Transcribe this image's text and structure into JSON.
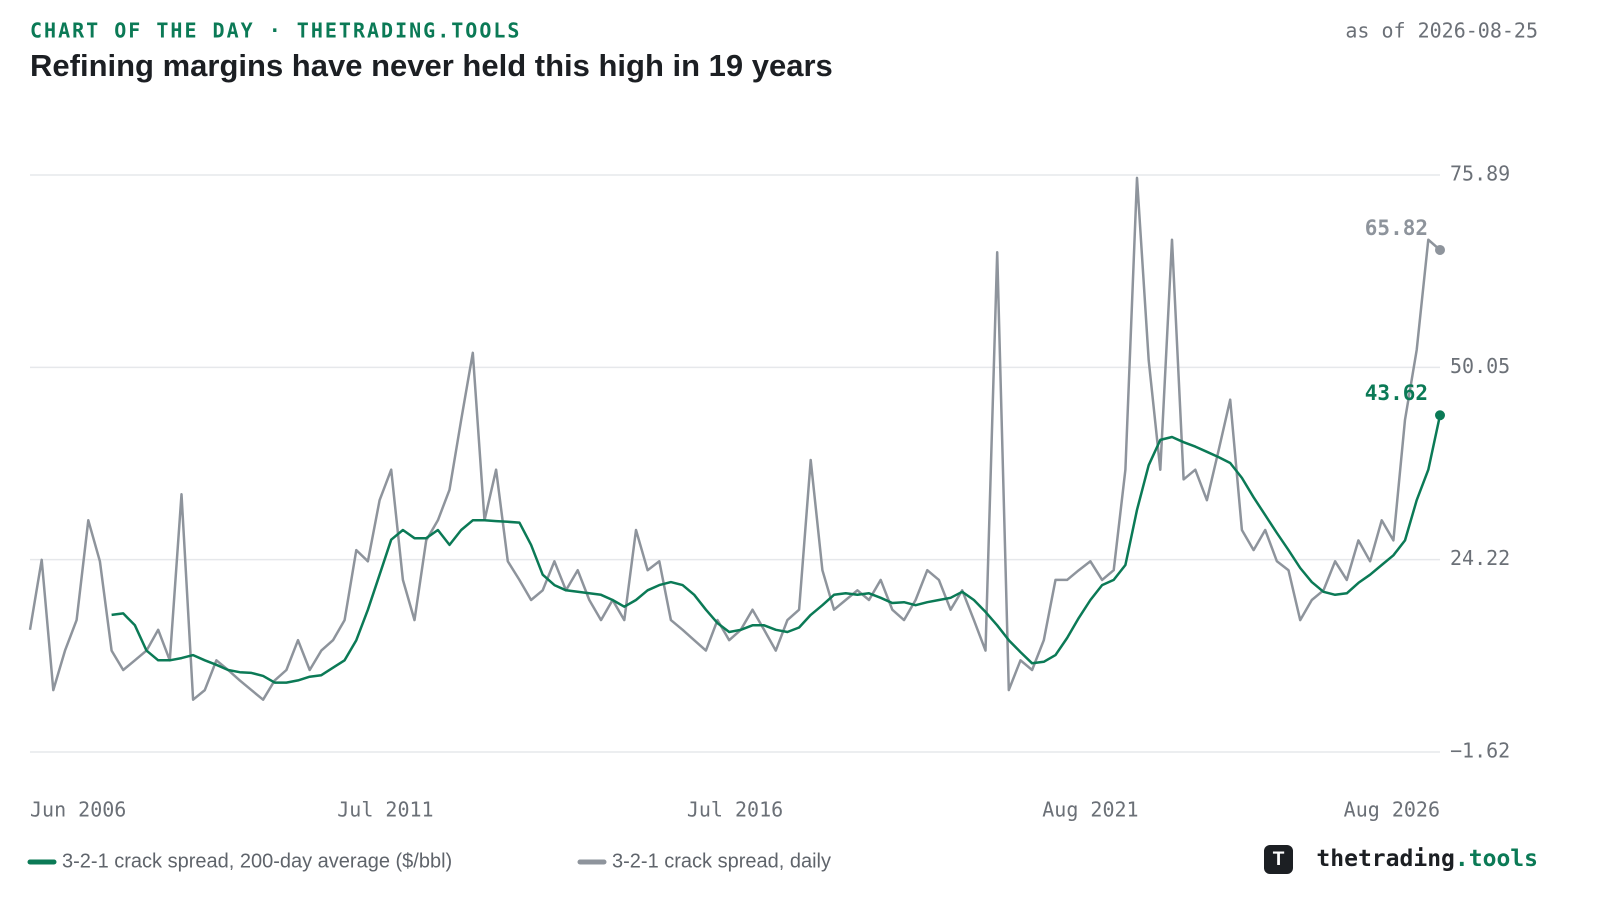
{
  "header": {
    "kicker": "CHART OF THE DAY · THETRADING.TOOLS",
    "title": "Refining margins have never held this high in 19 years",
    "as_of": "as of 2026-08-25"
  },
  "footer": {
    "logo_letter": "T",
    "brand": [
      "thetrading",
      ".tools"
    ]
  },
  "chart_data": {
    "type": "line",
    "x": [
      "2006-06",
      "2006-08",
      "2006-10",
      "2006-12",
      "2007-02",
      "2007-04",
      "2007-06",
      "2007-08",
      "2007-10",
      "2007-12",
      "2008-02",
      "2008-04",
      "2008-06",
      "2008-08",
      "2008-10",
      "2008-12",
      "2009-02",
      "2009-04",
      "2009-06",
      "2009-08",
      "2009-10",
      "2009-12",
      "2010-02",
      "2010-04",
      "2010-06",
      "2010-08",
      "2010-10",
      "2010-12",
      "2011-02",
      "2011-04",
      "2011-06",
      "2011-08",
      "2011-10",
      "2011-12",
      "2012-02",
      "2012-04",
      "2012-06",
      "2012-08",
      "2012-10",
      "2012-12",
      "2013-02",
      "2013-04",
      "2013-06",
      "2013-08",
      "2013-10",
      "2013-12",
      "2014-02",
      "2014-04",
      "2014-06",
      "2014-08",
      "2014-10",
      "2014-12",
      "2015-02",
      "2015-04",
      "2015-06",
      "2015-08",
      "2015-10",
      "2015-12",
      "2016-02",
      "2016-04",
      "2016-06",
      "2016-08",
      "2016-10",
      "2016-12",
      "2017-02",
      "2017-04",
      "2017-06",
      "2017-08",
      "2017-10",
      "2017-12",
      "2018-02",
      "2018-04",
      "2018-06",
      "2018-08",
      "2018-10",
      "2018-12",
      "2019-02",
      "2019-04",
      "2019-06",
      "2019-08",
      "2019-10",
      "2019-12",
      "2020-02",
      "2020-04",
      "2020-06",
      "2020-08",
      "2020-10",
      "2020-12",
      "2021-02",
      "2021-04",
      "2021-06",
      "2021-08",
      "2021-10",
      "2021-12",
      "2022-02",
      "2022-04",
      "2022-06",
      "2022-08",
      "2022-10",
      "2022-12",
      "2023-02",
      "2023-04",
      "2023-06",
      "2023-08",
      "2023-10",
      "2023-12",
      "2024-02",
      "2024-04",
      "2024-06",
      "2024-08",
      "2024-10",
      "2024-12",
      "2025-02",
      "2025-04",
      "2025-06",
      "2025-08",
      "2025-10",
      "2025-12",
      "2026-02",
      "2026-04",
      "2026-06",
      "2026-08"
    ],
    "series": [
      {
        "name": "3-2-1 crack spread, 200-day average ($/bbl)",
        "color": "#0b7a56",
        "values": [
          null,
          null,
          null,
          null,
          null,
          null,
          null,
          16.8,
          17,
          15.4,
          12,
          10.7,
          10.7,
          11,
          11.4,
          10.7,
          10.1,
          9.4,
          9.1,
          9,
          8.6,
          7.7,
          7.7,
          8,
          8.5,
          8.7,
          9.7,
          10.7,
          13.4,
          17.5,
          22.2,
          26.9,
          28.2,
          27.1,
          27.1,
          28.2,
          26.2,
          28.2,
          29.5,
          29.5,
          29.4,
          29.3,
          29.2,
          26.2,
          22.2,
          20.8,
          20.1,
          19.9,
          19.7,
          19.5,
          18.8,
          17.9,
          18.8,
          20.1,
          20.8,
          21.2,
          20.8,
          19.5,
          17.5,
          15.7,
          14.5,
          14.8,
          15.4,
          15.4,
          14.8,
          14.5,
          15.1,
          16.8,
          18.1,
          19.5,
          19.7,
          19.5,
          19.7,
          19.1,
          18.4,
          18.5,
          18.1,
          18.5,
          18.8,
          19.1,
          19.9,
          18.8,
          17.2,
          15.4,
          13.4,
          11.8,
          10.3,
          10.5,
          11.4,
          13.7,
          16.4,
          18.8,
          20.8,
          21.5,
          23.5,
          30.9,
          36.9,
          40.3,
          40.7,
          40,
          39.4,
          38.7,
          38,
          37.2,
          35.2,
          32.6,
          30.2,
          27.8,
          25.5,
          23.1,
          21.2,
          19.9,
          19.5,
          19.7,
          21.1,
          22.2,
          23.5,
          24.8,
          26.8,
          32.2,
          36.3,
          43.62
        ]
      },
      {
        "name": "3-2-1 crack spread, daily",
        "color": "#8e949c",
        "values": [
          14.8,
          24.2,
          6.7,
          12,
          16.1,
          29.5,
          24,
          12,
          9.4,
          10.7,
          12,
          14.8,
          10.7,
          33,
          5.4,
          6.7,
          10.7,
          9.4,
          8,
          6.7,
          5.4,
          8,
          9.4,
          13.4,
          9.4,
          12,
          13.4,
          16.1,
          25.5,
          24,
          32.2,
          36.3,
          21.5,
          16.1,
          26.8,
          29.5,
          33.6,
          43,
          52,
          29.5,
          36.3,
          24,
          21.5,
          18.8,
          20.1,
          24,
          20.1,
          22.8,
          18.8,
          16.1,
          18.8,
          16.1,
          28.2,
          22.8,
          24,
          16.1,
          14.8,
          13.4,
          12,
          16.1,
          13.4,
          14.8,
          17.5,
          14.8,
          12,
          16.1,
          17.5,
          37.6,
          22.8,
          17.5,
          18.8,
          20.1,
          18.8,
          21.5,
          17.5,
          16.1,
          18.8,
          22.8,
          21.5,
          17.5,
          20.1,
          16.1,
          12,
          65.5,
          6.7,
          10.7,
          9.4,
          13.4,
          21.5,
          21.5,
          22.8,
          24,
          21.5,
          22.8,
          36.3,
          75.5,
          51,
          36.3,
          67.2,
          35,
          36.3,
          32.2,
          38.9,
          45.7,
          28.2,
          25.5,
          28.2,
          24,
          22.8,
          16.1,
          18.8,
          20.1,
          24,
          21.5,
          26.8,
          24,
          29.5,
          26.8,
          43,
          52.4,
          67.2,
          65.82
        ]
      }
    ],
    "xlim": [
      "2006-06",
      "2026-08"
    ],
    "xticks": [
      {
        "value": "2006-06",
        "label": "Jun 2006"
      },
      {
        "value": "2011-07",
        "label": "Jul 2011"
      },
      {
        "value": "2016-07",
        "label": "Jul 2016"
      },
      {
        "value": "2021-08",
        "label": "Aug 2021"
      },
      {
        "value": "2026-08",
        "label": "Aug 2026"
      }
    ],
    "ylim": [
      -1.62,
      75.89
    ],
    "yticks": [
      {
        "value": -1.62,
        "label": "−1.62"
      },
      24.22,
      50.05,
      75.89
    ],
    "grid": true,
    "legend": "bottom-left"
  }
}
